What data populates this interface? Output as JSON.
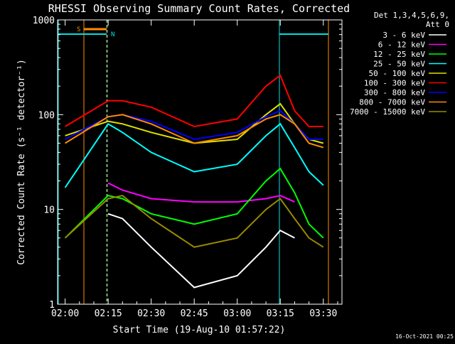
{
  "chart_data": {
    "type": "line",
    "title": "RHESSI Observing Summary Count Rates, Corrected",
    "xlabel": "Start Time (19-Aug-10 01:57:22)",
    "ylabel": "Corrected Count Rate (s⁻¹ detector⁻¹)",
    "yscale": "log",
    "ylim": [
      1,
      1000
    ],
    "xlim": [
      "01:57:22",
      "03:36:30"
    ],
    "xticks": [
      "02:00",
      "02:15",
      "02:30",
      "02:45",
      "03:00",
      "03:15",
      "03:30"
    ],
    "yticks": [
      "1",
      "10",
      "100",
      "1000"
    ],
    "grid": false,
    "legend_position": "right",
    "legend_header": [
      "Det 1,3,4,5,6,9,",
      "Att 0"
    ],
    "footer_date": "16-Oct-2021 00:25",
    "markers": [
      {
        "label": "S",
        "color": "#ff8c00"
      },
      {
        "label": "N",
        "color": "#00e0e0"
      }
    ],
    "x": [
      "02:00",
      "02:15",
      "02:20",
      "02:30",
      "02:45",
      "03:00",
      "03:10",
      "03:15",
      "03:20",
      "03:25",
      "03:30"
    ],
    "series": [
      {
        "name": "3 - 6 keV",
        "color": "#ffffff",
        "values": [
          null,
          9,
          8,
          4,
          1.5,
          2,
          4,
          6,
          5,
          null,
          null
        ]
      },
      {
        "name": "6 - 12 keV",
        "color": "#ff00ff",
        "values": [
          null,
          19,
          16,
          13,
          12,
          12,
          13,
          14,
          12,
          null,
          null
        ]
      },
      {
        "name": "12 - 25 keV",
        "color": "#00ff00",
        "values": [
          5,
          14,
          13,
          9,
          7,
          9,
          20,
          27,
          15,
          7,
          5
        ]
      },
      {
        "name": "25 - 50 keV",
        "color": "#00ffff",
        "values": [
          17,
          80,
          65,
          40,
          25,
          30,
          60,
          80,
          45,
          25,
          18
        ]
      },
      {
        "name": "50 - 100 keV",
        "color": "#e0e000",
        "values": [
          60,
          85,
          80,
          65,
          50,
          55,
          100,
          130,
          80,
          55,
          50
        ]
      },
      {
        "name": "100 - 300 keV",
        "color": "#ff0000",
        "values": [
          75,
          140,
          140,
          120,
          75,
          90,
          200,
          260,
          110,
          75,
          75
        ]
      },
      {
        "name": "300 - 800 keV",
        "color": "#0000ff",
        "values": [
          55,
          95,
          100,
          85,
          55,
          65,
          95,
          110,
          80,
          55,
          55
        ]
      },
      {
        "name": "800 - 7000 keV",
        "color": "#ff8c00",
        "values": [
          50,
          95,
          100,
          80,
          50,
          60,
          90,
          100,
          80,
          50,
          45
        ]
      },
      {
        "name": "7000 - 15000 keV",
        "color": "#9a8a00",
        "values": [
          5,
          13,
          14,
          8,
          4,
          5,
          10,
          13,
          8,
          5,
          4
        ]
      }
    ]
  }
}
